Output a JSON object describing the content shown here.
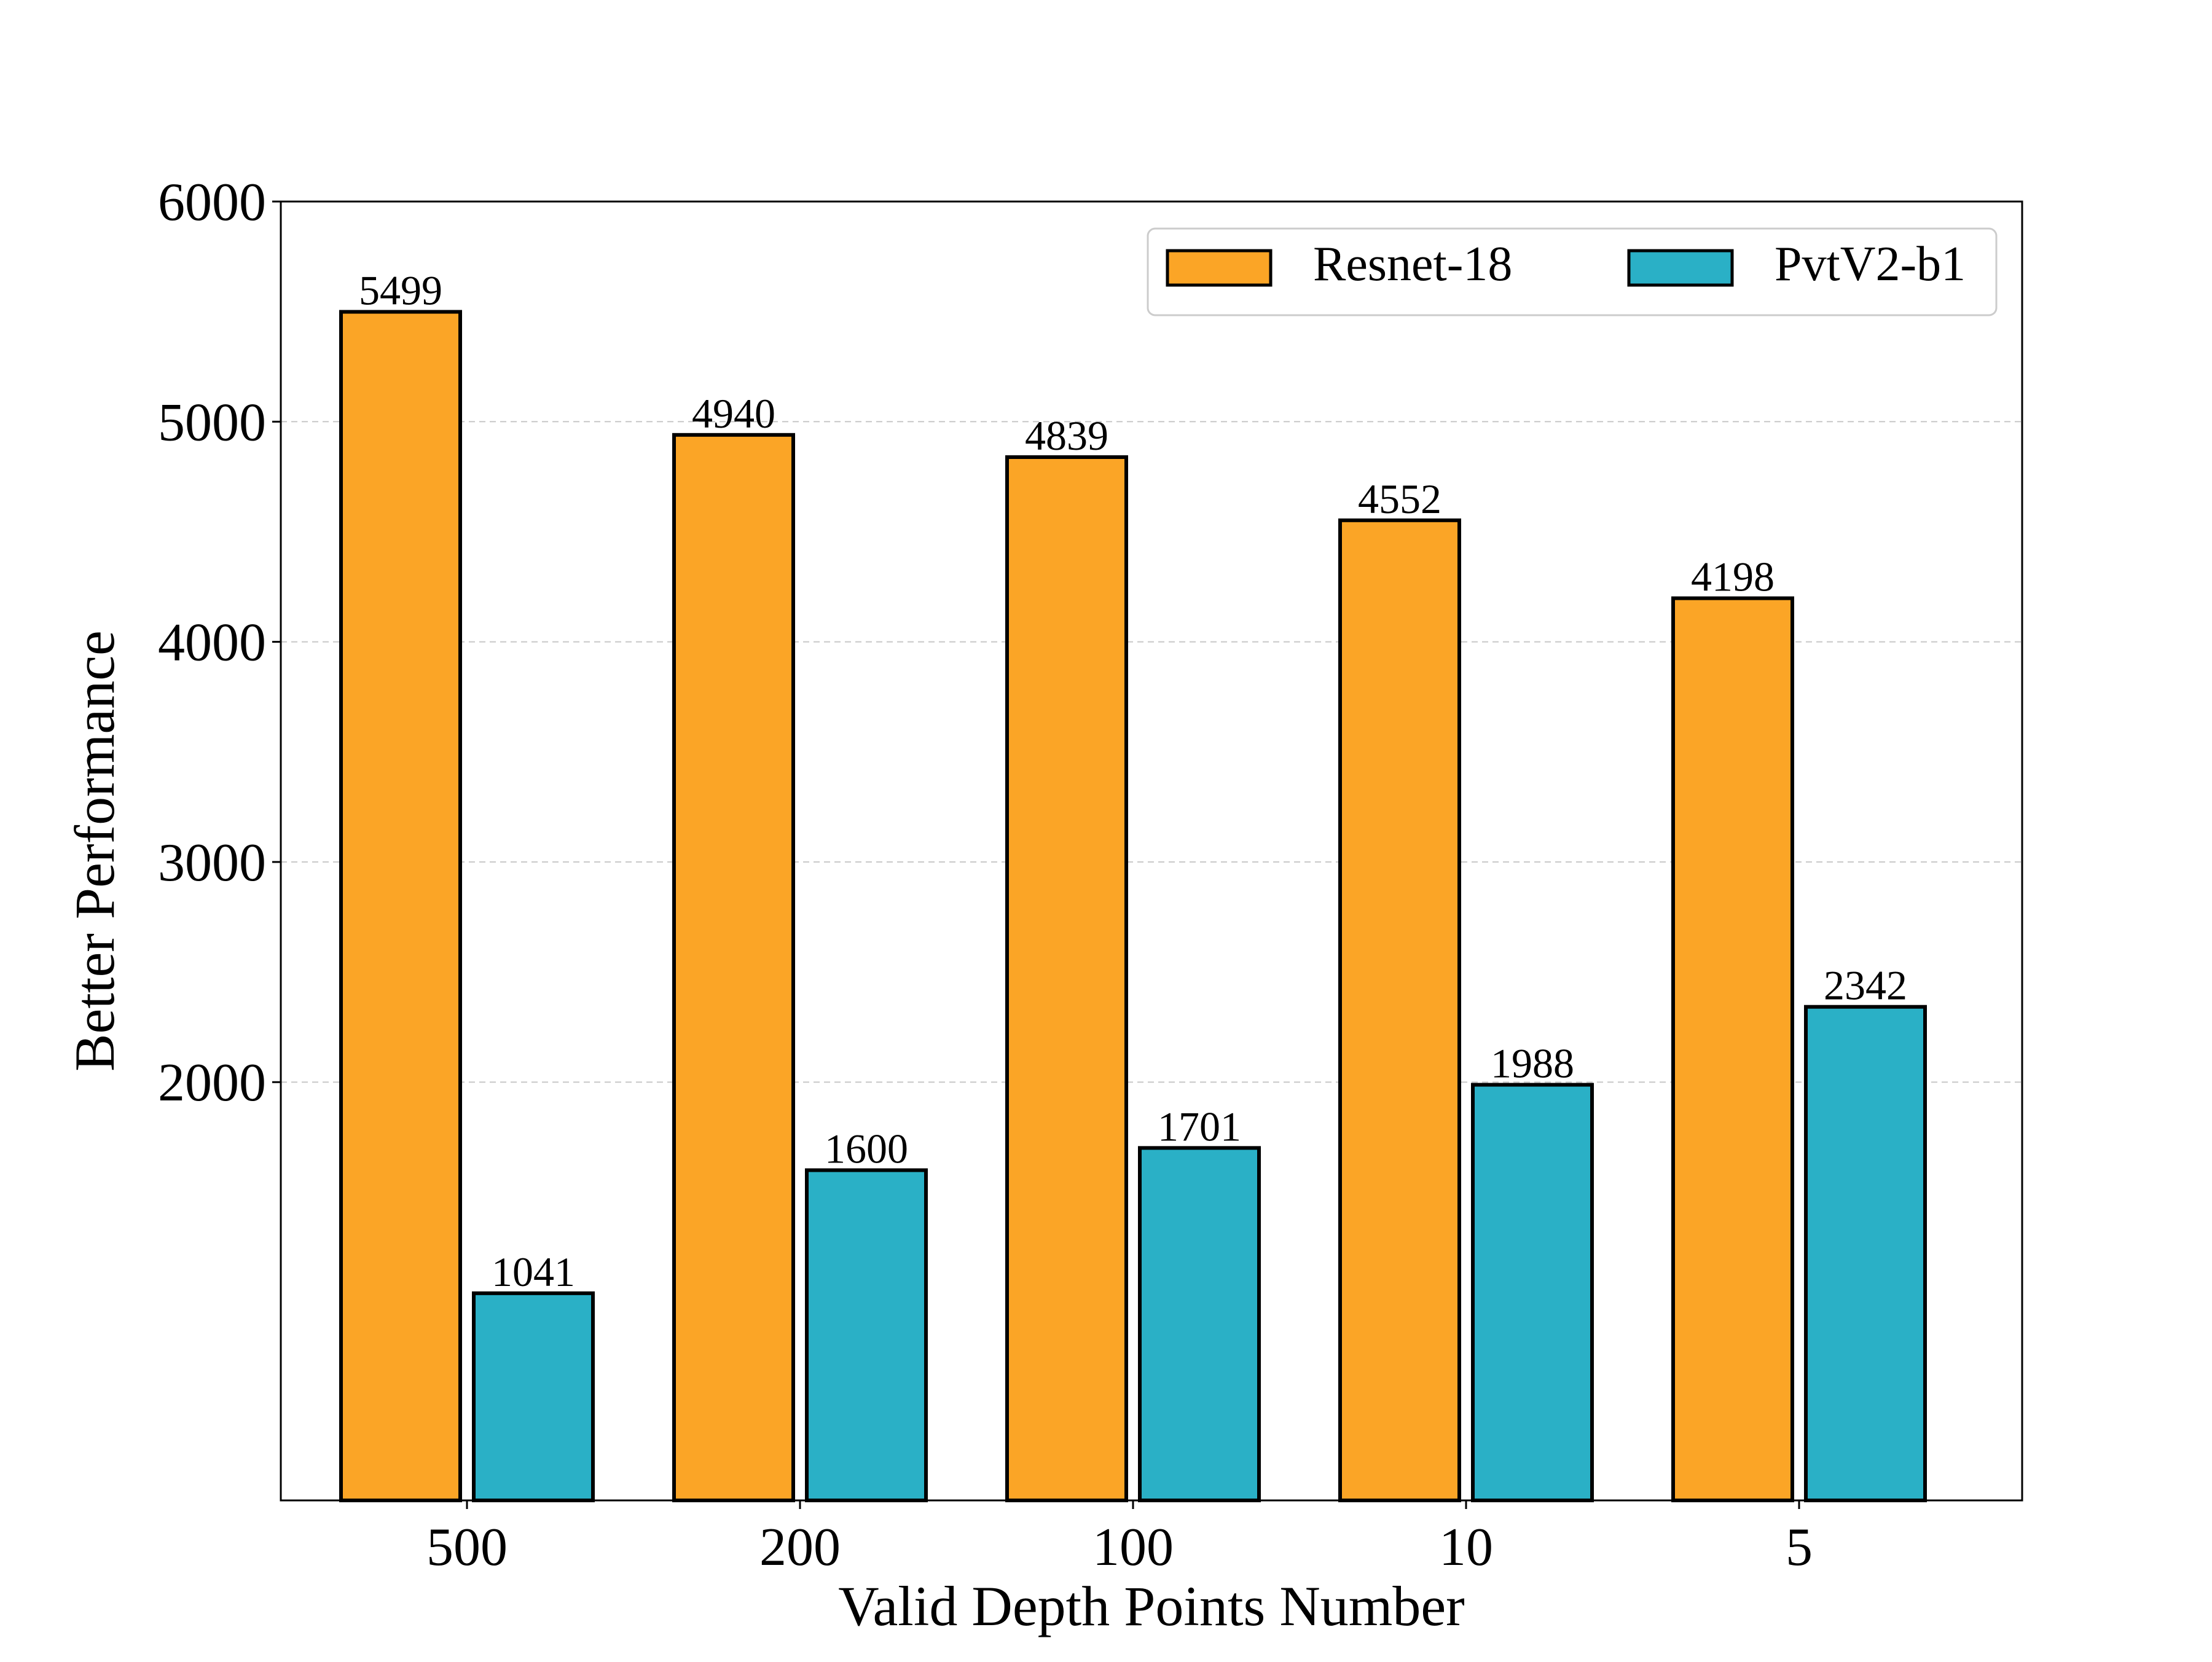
{
  "chart_data": {
    "type": "bar",
    "title": "",
    "xlabel": "Valid Depth Points Number",
    "ylabel": "Better Performance",
    "categories": [
      "500",
      "200",
      "100",
      "10",
      "5"
    ],
    "series": [
      {
        "name": "Resnet-18",
        "color": "#FBA526",
        "values": [
          5499,
          4940,
          4839,
          4552,
          4198
        ]
      },
      {
        "name": "PvtV2-b1",
        "color": "#2AB0C6",
        "values": [
          1041,
          1600,
          1701,
          1988,
          2342
        ]
      }
    ],
    "ylim": [
      100,
      6000
    ],
    "yticks": [
      2000,
      3000,
      4000,
      5000,
      6000
    ],
    "grid": "horizontal dashed",
    "legend_position": "top-right",
    "data_labels": true
  }
}
